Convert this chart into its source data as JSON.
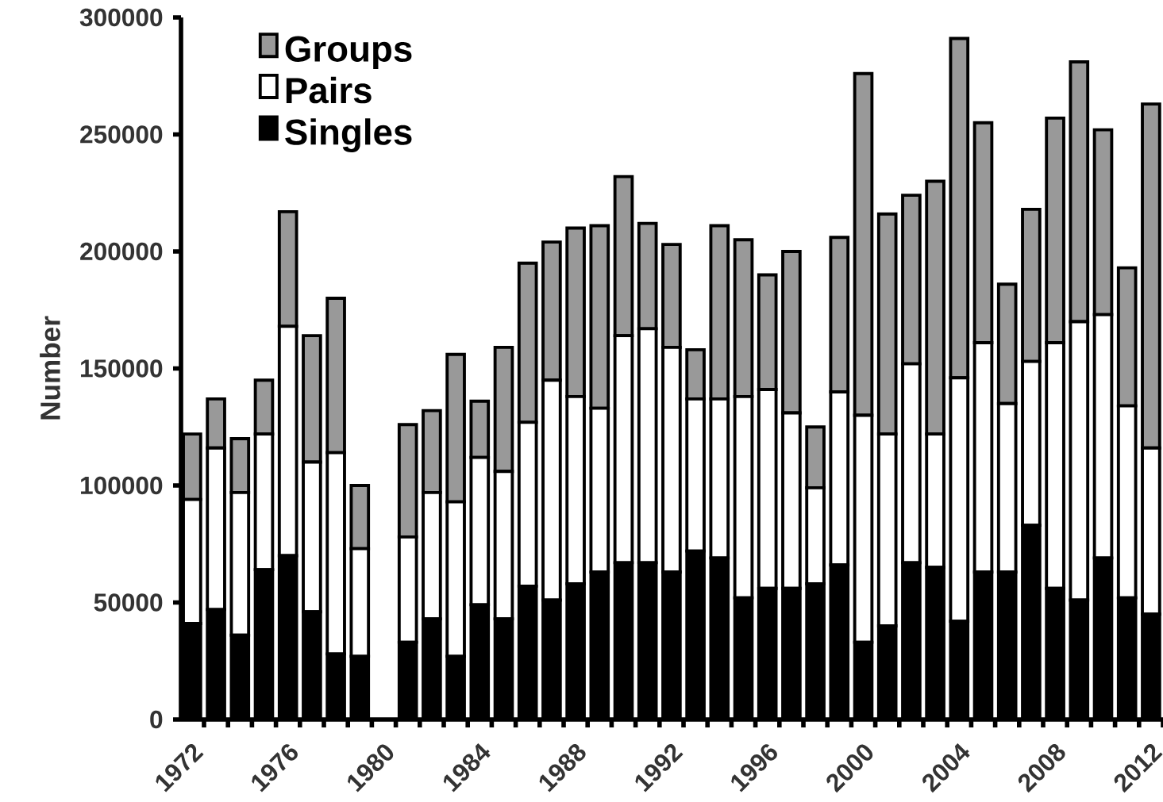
{
  "chart_data": {
    "type": "bar",
    "stacked": true,
    "ylabel": "Number",
    "categories": [
      "1972",
      null,
      null,
      null,
      "1976",
      null,
      null,
      null,
      "1980",
      null,
      null,
      null,
      "1984",
      null,
      null,
      null,
      "1988",
      null,
      null,
      null,
      "1992",
      null,
      null,
      null,
      "1996",
      null,
      null,
      null,
      "2000",
      null,
      null,
      null,
      "2004",
      null,
      null,
      null,
      "2008",
      null,
      null,
      null,
      "2012"
    ],
    "series": [
      {
        "name": "Singles",
        "color": "#000000",
        "values": [
          41000,
          47000,
          36000,
          64000,
          70000,
          46000,
          28000,
          27000,
          0,
          33000,
          43000,
          27000,
          49000,
          43000,
          57000,
          51000,
          58000,
          63000,
          67000,
          67000,
          63000,
          72000,
          69000,
          52000,
          56000,
          56000,
          58000,
          66000,
          33000,
          40000,
          67000,
          65000,
          42000,
          63000,
          63000,
          83000,
          56000,
          51000,
          69000,
          52000,
          45000
        ]
      },
      {
        "name": "Pairs",
        "color": "#ffffff",
        "values": [
          53000,
          69000,
          61000,
          58000,
          98000,
          64000,
          86000,
          46000,
          0,
          45000,
          54000,
          66000,
          63000,
          63000,
          70000,
          94000,
          80000,
          70000,
          97000,
          100000,
          96000,
          65000,
          68000,
          86000,
          85000,
          75000,
          41000,
          74000,
          97000,
          82000,
          85000,
          57000,
          104000,
          98000,
          72000,
          70000,
          105000,
          119000,
          104000,
          82000,
          71000
        ]
      },
      {
        "name": "Groups",
        "color": "#999999",
        "values": [
          28000,
          21000,
          23000,
          23000,
          49000,
          54000,
          66000,
          27000,
          0,
          48000,
          35000,
          63000,
          24000,
          53000,
          68000,
          59000,
          72000,
          78000,
          68000,
          45000,
          44000,
          21000,
          74000,
          67000,
          49000,
          69000,
          26000,
          66000,
          146000,
          94000,
          72000,
          108000,
          145000,
          94000,
          51000,
          65000,
          96000,
          111000,
          79000,
          59000,
          147000
        ]
      }
    ],
    "ylim": [
      0,
      300000
    ],
    "yticks": [
      0,
      50000,
      100000,
      150000,
      200000,
      250000,
      300000
    ],
    "legend": "top left"
  }
}
